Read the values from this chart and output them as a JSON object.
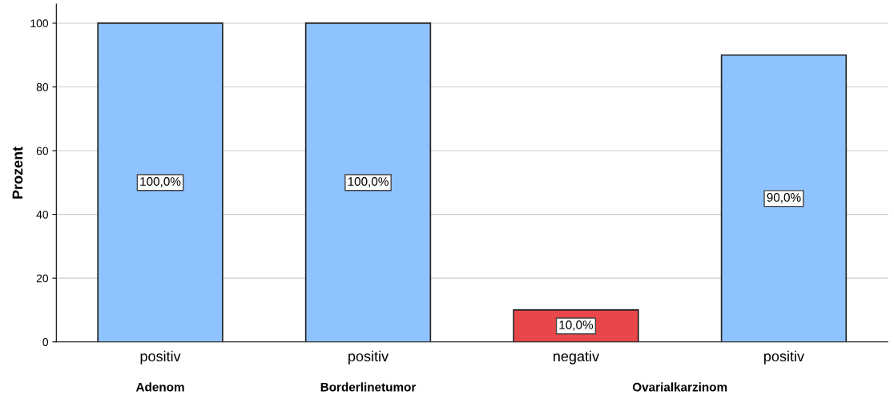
{
  "chart_data": {
    "type": "bar",
    "ylabel": "Prozent",
    "categories": [
      "positiv",
      "positiv",
      "negativ",
      "positiv"
    ],
    "values": [
      100,
      100,
      10,
      90
    ],
    "colors": [
      "#8fc3ff",
      "#8fc3ff",
      "#e8474a",
      "#8fc3ff"
    ],
    "value_labels": [
      "100,0%",
      "100,0%",
      "10,0%",
      "90,0%"
    ],
    "annotations": [
      "Adenom",
      "Borderlinetumor",
      "Ovarialkarzinom"
    ],
    "ylim": [
      0,
      106
    ],
    "yticks": [
      0,
      20,
      40,
      60,
      80,
      100
    ],
    "grid": "y"
  }
}
